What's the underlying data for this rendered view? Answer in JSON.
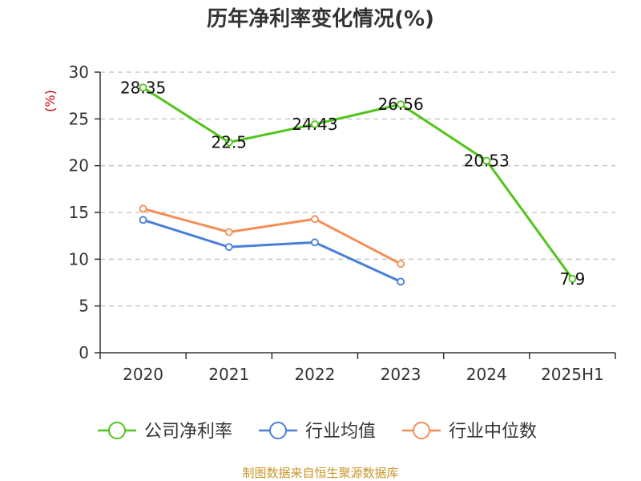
{
  "chart_data": {
    "type": "line",
    "title": "历年净利率变化情况(%)",
    "ylabel": "(%)",
    "xlabel": "",
    "categories": [
      "2020",
      "2021",
      "2022",
      "2023",
      "2024",
      "2025H1"
    ],
    "ylim": [
      0,
      30
    ],
    "yticks": [
      0,
      5,
      10,
      15,
      20,
      25,
      30
    ],
    "grid": true,
    "legend_position": "bottom",
    "series": [
      {
        "name": "公司净利率",
        "color": "#52c41a",
        "values": [
          28.35,
          22.5,
          24.43,
          26.56,
          20.53,
          7.9
        ],
        "labels": [
          "28.35",
          "22.5",
          "24.43",
          "26.56",
          "20.53",
          "7.9"
        ]
      },
      {
        "name": "行业均值",
        "color": "#4a7fd9",
        "values": [
          14.2,
          11.3,
          11.8,
          7.6,
          null,
          null
        ]
      },
      {
        "name": "行业中位数",
        "color": "#f58d55",
        "values": [
          15.4,
          12.9,
          14.3,
          9.5,
          null,
          null
        ]
      }
    ]
  },
  "footer": {
    "source": "制图数据来自恒生聚源数据库"
  }
}
